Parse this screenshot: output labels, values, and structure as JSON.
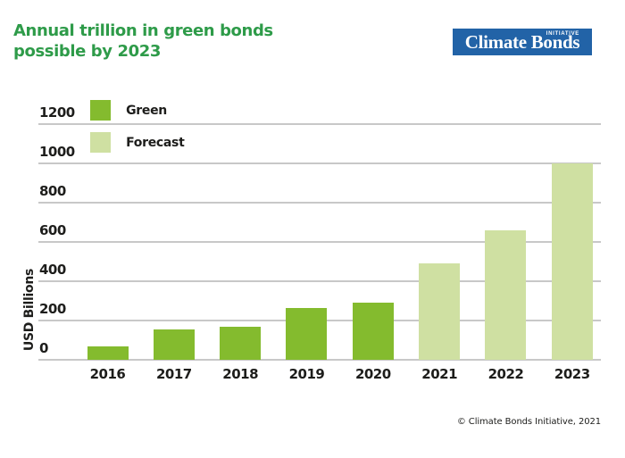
{
  "header": {
    "title_line1": "Annual trillion in green bonds",
    "title_line2": "possible by 2023",
    "logo": {
      "text": "Climate Bonds",
      "superscript": "INITIATIVE"
    }
  },
  "legend": [
    {
      "label": "Green",
      "color": "#84bb2e"
    },
    {
      "label": "Forecast",
      "color": "#cfe0a2"
    }
  ],
  "chart_data": {
    "type": "bar",
    "title": "Annual trillion in green bonds possible by 2023",
    "xlabel": "",
    "ylabel": "USD Billions",
    "ylim": [
      0,
      1200
    ],
    "yticks": [
      0,
      200,
      400,
      600,
      800,
      1000,
      1200
    ],
    "grid": true,
    "legend_position": "top-left",
    "categories": [
      "2016",
      "2017",
      "2018",
      "2019",
      "2020",
      "2021",
      "2022",
      "2023"
    ],
    "series": [
      {
        "name": "Green",
        "color": "#84bb2e",
        "values": [
          70,
          155,
          170,
          265,
          290,
          null,
          null,
          null
        ]
      },
      {
        "name": "Forecast",
        "color": "#cfe0a2",
        "values": [
          null,
          null,
          null,
          null,
          null,
          490,
          660,
          1000
        ]
      }
    ]
  },
  "colors": {
    "green": "#84bb2e",
    "forecast_green": "#cfe0a2",
    "title_green": "#2e9b49",
    "logo_blue": "#2263a7",
    "gridline": "#c8c8c8",
    "text": "#1d1d1b"
  },
  "footer": {
    "copyright": "© Climate Bonds Initiative, 2021"
  }
}
